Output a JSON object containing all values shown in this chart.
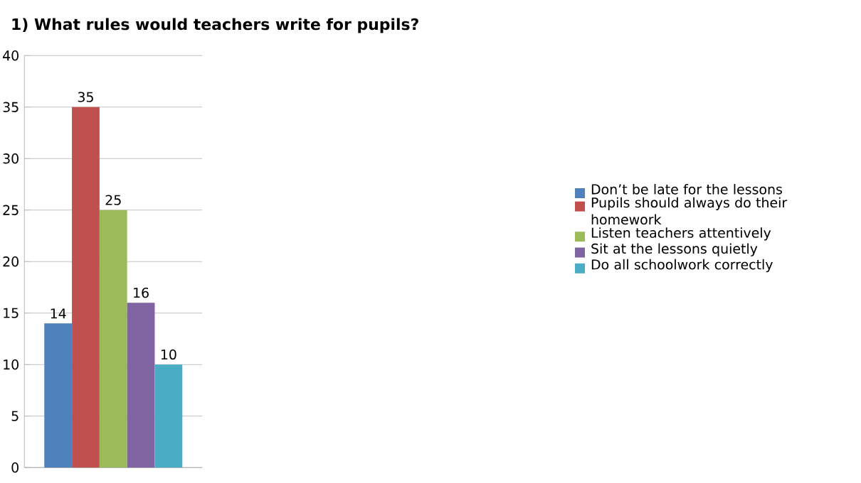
{
  "chart_data": {
    "type": "bar",
    "title": "1) What rules would teachers write for pupils?",
    "categories": [
      null
    ],
    "series": [
      {
        "name": "Don’t be late for the lessons",
        "color": "#4f81bd",
        "values": [
          14
        ]
      },
      {
        "name": "Pupils should always do their homework",
        "color": "#c0504d",
        "values": [
          35
        ]
      },
      {
        "name": "Listen teachers attentively",
        "color": "#9bbb59",
        "values": [
          25
        ]
      },
      {
        "name": "Sit at the lessons quietly",
        "color": "#8064a2",
        "values": [
          16
        ]
      },
      {
        "name": "Do all schoolwork correctly",
        "color": "#4bacc6",
        "values": [
          10
        ]
      }
    ],
    "ylim": [
      0,
      40
    ],
    "yticks": [
      0,
      5,
      10,
      15,
      20,
      25,
      30,
      35,
      40
    ],
    "grid": "y",
    "legend": "right",
    "data_labels": true
  }
}
